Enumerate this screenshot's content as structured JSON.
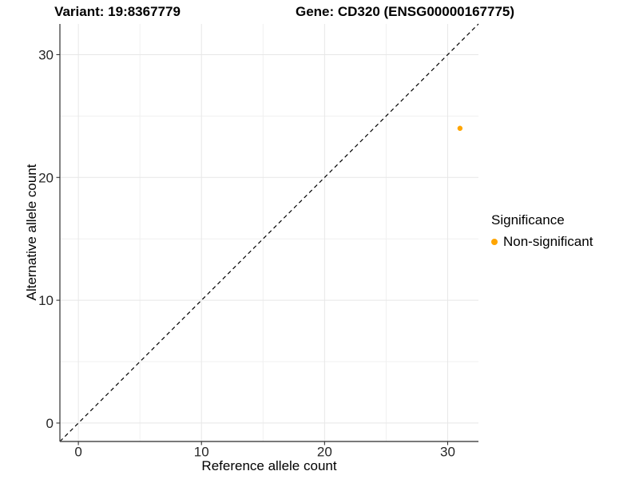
{
  "chart_data": {
    "type": "scatter",
    "title_left": "Variant: 19:8367779",
    "title_right": "Gene: CD320 (ENSG00000167775)",
    "xlabel": "Reference allele count",
    "ylabel": "Alternative allele count",
    "xlim": [
      -1.5,
      32.5
    ],
    "ylim": [
      -1.5,
      32.5
    ],
    "x_ticks": [
      0,
      10,
      20,
      30
    ],
    "y_ticks": [
      0,
      10,
      20,
      30
    ],
    "x_minor_ticks": [
      5,
      15,
      25
    ],
    "y_minor_ticks": [
      5,
      15,
      25
    ],
    "grid": true,
    "reference_line": {
      "kind": "y = x",
      "style": "dashed",
      "color": "#000000"
    },
    "series": [
      {
        "name": "Non-significant",
        "color": "#FFA500",
        "points": [
          {
            "x": 31,
            "y": 24
          }
        ]
      }
    ],
    "legend": {
      "title": "Significance",
      "position": "right",
      "entries": [
        {
          "label": "Non-significant",
          "color": "#FFA500"
        }
      ]
    },
    "colors": {
      "grid_major": "#E7E7E7",
      "grid_minor": "#F0F0F0",
      "axis_line": "#4D4D4D",
      "tick_mark": "#333333",
      "tick_label": "#262626",
      "point": "#FFA500"
    }
  }
}
